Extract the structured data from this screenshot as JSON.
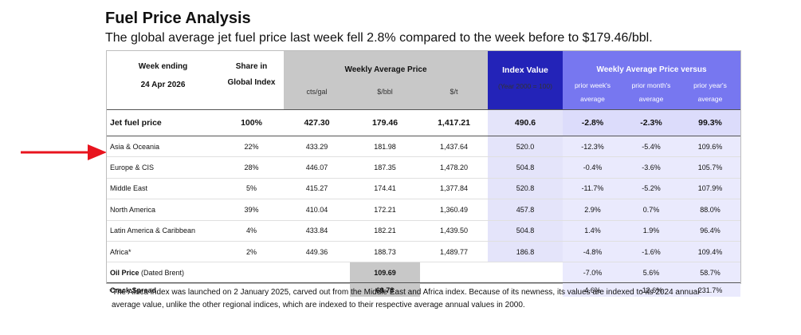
{
  "title": "Fuel Price Analysis",
  "subtitle": "The global average jet fuel price last week fell 2.8% compared to the week before to $179.46/bbl.",
  "header": {
    "week_label": "Week ending",
    "week_date": "24 Apr 2026",
    "share_label_1": "Share in",
    "share_label_2": "Global Index",
    "weekly_avg_label": "Weekly Average Price",
    "unit_cts": "cts/gal",
    "unit_bbl": "$/bbl",
    "unit_t": "$/t",
    "index_label": "Index Value",
    "index_unit": "(Year 2000 = 100)",
    "versus_label": "Weekly Average Price versus",
    "vs_week_1": "prior week's",
    "vs_week_2": "average",
    "vs_month_1": "prior month's",
    "vs_month_2": "average",
    "vs_year_1": "prior year's",
    "vs_year_2": "average"
  },
  "jet": {
    "label": "Jet fuel price",
    "share": "100%",
    "cts": "427.30",
    "bbl": "179.46",
    "t": "1,417.21",
    "index": "490.6",
    "wk": "-2.8%",
    "mo": "-2.3%",
    "yr": "99.3%"
  },
  "regions": [
    {
      "label": "Asia & Oceania",
      "share": "22%",
      "cts": "433.29",
      "bbl": "181.98",
      "t": "1,437.64",
      "index": "520.0",
      "wk": "-12.3%",
      "mo": "-5.4%",
      "yr": "109.6%"
    },
    {
      "label": "Europe & CIS",
      "share": "28%",
      "cts": "446.07",
      "bbl": "187.35",
      "t": "1,478.20",
      "index": "504.8",
      "wk": "-0.4%",
      "mo": "-3.6%",
      "yr": "105.7%"
    },
    {
      "label": "Middle East",
      "share": "5%",
      "cts": "415.27",
      "bbl": "174.41",
      "t": "1,377.84",
      "index": "520.8",
      "wk": "-11.7%",
      "mo": "-5.2%",
      "yr": "107.9%"
    },
    {
      "label": "North America",
      "share": "39%",
      "cts": "410.04",
      "bbl": "172.21",
      "t": "1,360.49",
      "index": "457.8",
      "wk": "2.9%",
      "mo": "0.7%",
      "yr": "88.0%"
    },
    {
      "label": "Latin America & Caribbean",
      "share": "4%",
      "cts": "433.84",
      "bbl": "182.21",
      "t": "1,439.50",
      "index": "504.8",
      "wk": "1.4%",
      "mo": "1.9%",
      "yr": "96.4%"
    },
    {
      "label": "Africa*",
      "share": "2%",
      "cts": "449.36",
      "bbl": "188.73",
      "t": "1,489.77",
      "index": "186.8",
      "wk": "-4.8%",
      "mo": "-1.6%",
      "yr": "109.4%"
    }
  ],
  "oil": {
    "label_bold": "Oil Price",
    "label_rest": " (Dated Brent)",
    "bbl": "109.69",
    "wk": "-7.0%",
    "mo": "5.6%",
    "yr": "58.7%"
  },
  "crack": {
    "label": "Crack Spread",
    "bbl": "69.78",
    "wk": "4.6%",
    "mo": "-12.6%",
    "yr": "231.7%"
  },
  "footnote_1": "*The Africa index was launched on 2 January 2025, carved out from the Middle East and Africa index. Because of its newness, its values are indexed  to its 2024 annual",
  "footnote_2": "average value, unlike the other regional indices, which are indexed to their respective average annual values in 2000.",
  "colors": {
    "gray": "#c8c8c8",
    "navy": "#2323b8",
    "lavender": "#7777f0",
    "arrow": "#e8141e"
  }
}
